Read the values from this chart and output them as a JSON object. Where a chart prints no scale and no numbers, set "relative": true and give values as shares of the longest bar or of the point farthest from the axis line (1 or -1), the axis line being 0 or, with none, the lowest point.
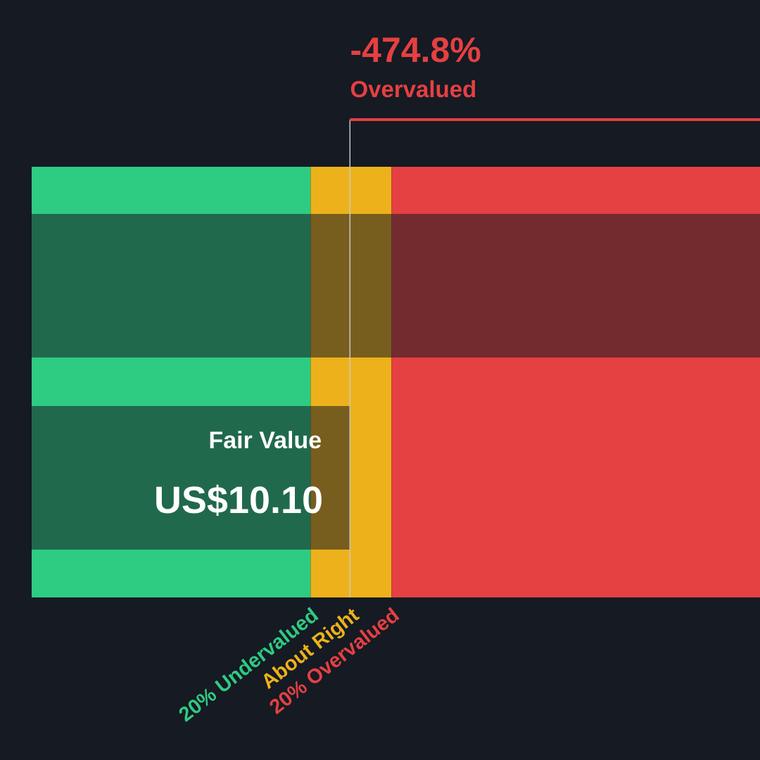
{
  "chart_data": {
    "type": "bar",
    "orientation": "horizontal",
    "relative": true,
    "categories": [
      null,
      null
    ],
    "series": [
      {
        "color": "#151a23",
        "values": [
          1,
          0.437
        ]
      }
    ],
    "bands": [
      {
        "axis": "x",
        "from": 0,
        "to": 0.383,
        "label": "20% Undervalued",
        "color": "#2ecb82"
      },
      {
        "axis": "x",
        "from": 0.383,
        "to": 0.494,
        "label": "About Right",
        "color": "#edb21b"
      },
      {
        "axis": "x",
        "from": 0.494,
        "to": 1,
        "label": "20% Overvalued",
        "color": "#e54042"
      }
    ],
    "ref_lines": [
      {
        "axis": "x",
        "value": 0.437,
        "color": "#c8c8c8"
      }
    ],
    "annotations": [
      "-474.8%",
      "Overvalued",
      "Fair Value",
      "US$10.10"
    ]
  }
}
